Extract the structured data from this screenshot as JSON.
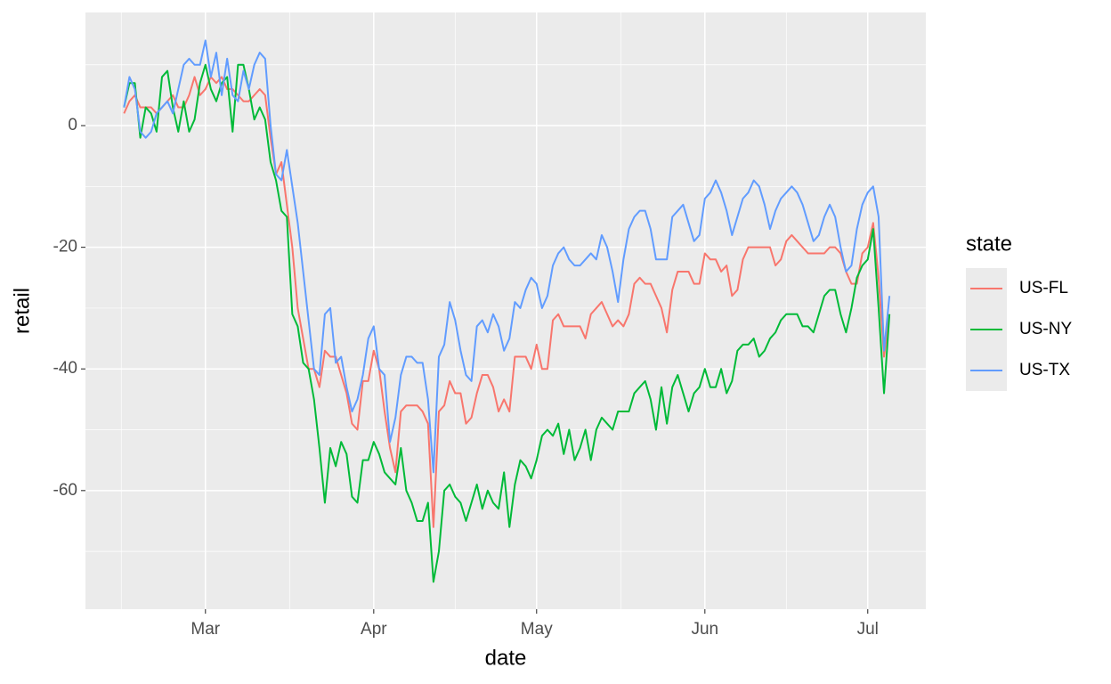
{
  "chart_data": {
    "type": "line",
    "x_label": "date",
    "y_label": "retail",
    "legend_title": "state",
    "x": [
      0,
      1,
      2,
      3,
      4,
      5,
      6,
      7,
      8,
      9,
      10,
      11,
      12,
      13,
      14,
      15,
      16,
      17,
      18,
      19,
      20,
      21,
      22,
      23,
      24,
      25,
      26,
      27,
      28,
      29,
      30,
      31,
      32,
      33,
      34,
      35,
      36,
      37,
      38,
      39,
      40,
      41,
      42,
      43,
      44,
      45,
      46,
      47,
      48,
      49,
      50,
      51,
      52,
      53,
      54,
      55,
      56,
      57,
      58,
      59,
      60,
      61,
      62,
      63,
      64,
      65,
      66,
      67,
      68,
      69,
      70,
      71,
      72,
      73,
      74,
      75,
      76,
      77,
      78,
      79,
      80,
      81,
      82,
      83,
      84,
      85,
      86,
      87,
      88,
      89,
      90,
      91,
      92,
      93,
      94,
      95,
      96,
      97,
      98,
      99,
      100,
      101,
      102,
      103,
      104,
      105,
      106,
      107,
      108,
      109,
      110,
      111,
      112,
      113,
      114,
      115,
      116,
      117,
      118,
      119,
      120,
      121,
      122,
      123,
      124,
      125,
      126,
      127,
      128,
      129,
      130,
      131,
      132,
      133,
      134,
      135,
      136,
      137,
      138,
      139,
      140,
      141
    ],
    "series": [
      {
        "name": "US-FL",
        "color": "#F8766D",
        "values": [
          2,
          4,
          5,
          3,
          3,
          3,
          2,
          3,
          4,
          5,
          3,
          3,
          5,
          8,
          5,
          6,
          8,
          7,
          8,
          6,
          6,
          5,
          4,
          4,
          5,
          6,
          5,
          -2,
          -8,
          -6,
          -13,
          -20,
          -30,
          -35,
          -40,
          -40,
          -43,
          -37,
          -38,
          -38,
          -41,
          -44,
          -49,
          -50,
          -42,
          -42,
          -37,
          -40,
          -47,
          -53,
          -57,
          -47,
          -46,
          -46,
          -46,
          -47,
          -49,
          -66,
          -47,
          -46,
          -42,
          -44,
          -44,
          -49,
          -48,
          -44,
          -41,
          -41,
          -43,
          -47,
          -45,
          -47,
          -38,
          -38,
          -38,
          -40,
          -36,
          -40,
          -40,
          -32,
          -31,
          -33,
          -33,
          -33,
          -33,
          -35,
          -31,
          -30,
          -29,
          -31,
          -33,
          -32,
          -33,
          -31,
          -26,
          -25,
          -26,
          -26,
          -28,
          -30,
          -34,
          -27,
          -24,
          -24,
          -24,
          -26,
          -26,
          -21,
          -22,
          -22,
          -24,
          -23,
          -28,
          -27,
          -22,
          -20,
          -20,
          -20,
          -20,
          -20,
          -23,
          -22,
          -19,
          -18,
          -19,
          -20,
          -21,
          -21,
          -21,
          -21,
          -20,
          -20,
          -21,
          -24,
          -26,
          -26,
          -21,
          -20,
          -16,
          -25,
          -38,
          -31
        ]
      },
      {
        "name": "US-NY",
        "color": "#00BA38",
        "values": [
          3,
          7,
          7,
          -2,
          3,
          2,
          -1,
          8,
          9,
          3,
          -1,
          4,
          -1,
          1,
          7,
          10,
          6,
          4,
          7,
          8,
          -1,
          10,
          10,
          6,
          1,
          3,
          1,
          -6,
          -9,
          -14,
          -15,
          -31,
          -33,
          -39,
          -40,
          -45,
          -53,
          -62,
          -53,
          -56,
          -52,
          -54,
          -61,
          -62,
          -55,
          -55,
          -52,
          -54,
          -57,
          -58,
          -59,
          -53,
          -60,
          -62,
          -65,
          -65,
          -62,
          -75,
          -70,
          -60,
          -59,
          -61,
          -62,
          -65,
          -62,
          -59,
          -63,
          -60,
          -62,
          -63,
          -57,
          -66,
          -59,
          -55,
          -56,
          -58,
          -55,
          -51,
          -50,
          -51,
          -49,
          -54,
          -50,
          -55,
          -53,
          -50,
          -55,
          -50,
          -48,
          -49,
          -50,
          -47,
          -47,
          -47,
          -44,
          -43,
          -42,
          -45,
          -50,
          -43,
          -49,
          -43,
          -41,
          -44,
          -47,
          -44,
          -43,
          -40,
          -43,
          -43,
          -40,
          -44,
          -42,
          -37,
          -36,
          -36,
          -35,
          -38,
          -37,
          -35,
          -34,
          -32,
          -31,
          -31,
          -31,
          -33,
          -33,
          -34,
          -31,
          -28,
          -27,
          -27,
          -31,
          -34,
          -30,
          -25,
          -23,
          -22,
          -17,
          -30,
          -44,
          -31
        ]
      },
      {
        "name": "US-TX",
        "color": "#619CFF",
        "values": [
          3,
          8,
          6,
          -1,
          -2,
          -1,
          2,
          3,
          4,
          2,
          6,
          10,
          11,
          10,
          10,
          14,
          8,
          12,
          5,
          11,
          5,
          4,
          9,
          6,
          10,
          12,
          11,
          0,
          -8,
          -9,
          -4,
          -10,
          -16,
          -24,
          -32,
          -40,
          -41,
          -31,
          -30,
          -39,
          -38,
          -43,
          -47,
          -45,
          -41,
          -35,
          -33,
          -40,
          -41,
          -52,
          -48,
          -41,
          -38,
          -38,
          -39,
          -39,
          -45,
          -57,
          -38,
          -36,
          -29,
          -32,
          -37,
          -41,
          -42,
          -33,
          -32,
          -34,
          -31,
          -33,
          -37,
          -35,
          -29,
          -30,
          -27,
          -25,
          -26,
          -30,
          -28,
          -23,
          -21,
          -20,
          -22,
          -23,
          -23,
          -22,
          -21,
          -22,
          -18,
          -20,
          -24,
          -29,
          -22,
          -17,
          -15,
          -14,
          -14,
          -17,
          -22,
          -22,
          -22,
          -15,
          -14,
          -13,
          -16,
          -19,
          -18,
          -12,
          -11,
          -9,
          -11,
          -14,
          -18,
          -15,
          -12,
          -11,
          -9,
          -10,
          -13,
          -17,
          -14,
          -12,
          -11,
          -10,
          -11,
          -13,
          -16,
          -19,
          -18,
          -15,
          -13,
          -15,
          -20,
          -24,
          -23,
          -17,
          -13,
          -11,
          -10,
          -15,
          -37,
          -28
        ]
      }
    ],
    "xlim": [
      -7.1,
      147.7
    ],
    "xticks": [
      {
        "value": 15,
        "label": "Mar"
      },
      {
        "value": 46,
        "label": "Apr"
      },
      {
        "value": 76,
        "label": "May"
      },
      {
        "value": 107,
        "label": "Jun"
      },
      {
        "value": 137,
        "label": "Jul"
      }
    ],
    "ylim": [
      -79.5,
      18.6
    ],
    "yticks": [
      -60,
      -40,
      -20,
      0
    ],
    "grid": true,
    "legend_position": "right"
  }
}
